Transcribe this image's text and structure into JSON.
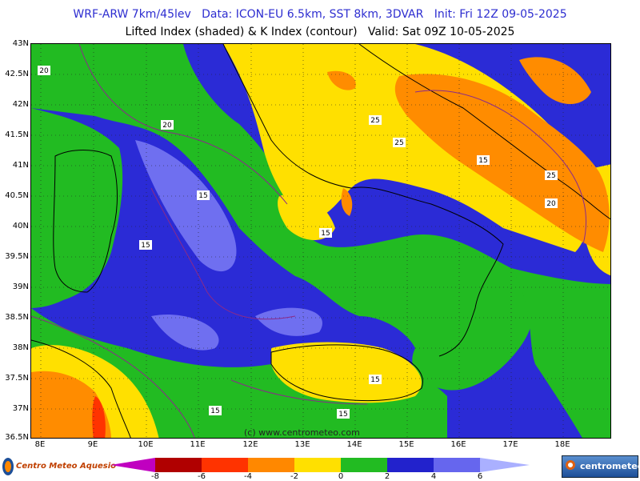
{
  "title_line1": "WRF-ARW 7km/45lev   Data: ICON-EU 6.5km, SST 8km, 3DVAR   Init: Fri 12Z 09-05-2025",
  "title_line2": "Lifted Index (shaded) & K Index (contour)   Valid: Sat 09Z 10-05-2025",
  "lat_labels": [
    "43N",
    "42.5N",
    "42N",
    "41.5N",
    "41N",
    "40.5N",
    "40N",
    "39.5N",
    "39N",
    "38.5N",
    "38N",
    "37.5N",
    "37N",
    "36.5N"
  ],
  "lon_labels": [
    "8E",
    "9E",
    "10E",
    "11E",
    "12E",
    "13E",
    "14E",
    "15E",
    "16E",
    "17E",
    "18E"
  ],
  "contour_labels": [
    "20",
    "20",
    "25",
    "25",
    "15",
    "25",
    "20",
    "15",
    "15",
    "15",
    "15",
    "15",
    "15"
  ],
  "watermark": "(c) www.centrometeo.com",
  "logo_left": "Centro Meteo Aquesio",
  "logo_right": "centrometeo",
  "colorbar": {
    "ticks": [
      "-8",
      "-6",
      "-4",
      "-2",
      "0",
      "2",
      "4",
      "6"
    ],
    "colors": [
      "#c000c0",
      "#b00000",
      "#ff3300",
      "#ff8800",
      "#ffe000",
      "#22bb22",
      "#2222cc",
      "#6666ee"
    ]
  },
  "palette": {
    "sea_blue": "#2b2bd6",
    "light_blue": "#6f6ff0",
    "green": "#22bb22",
    "yellow": "#ffe000",
    "orange": "#ff8c00",
    "red": "#ff3300"
  }
}
